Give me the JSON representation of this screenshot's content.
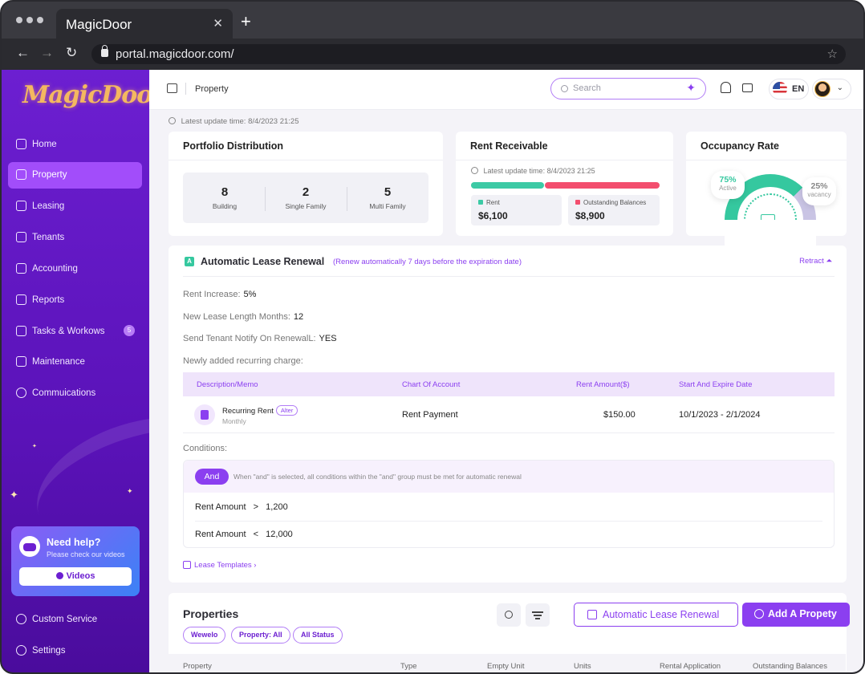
{
  "browser": {
    "tab_title": "MagicDoor",
    "tab_close": "✕",
    "new_tab": "+",
    "url": "portal.magicdoor.com/",
    "back": "←",
    "forward": "→",
    "reload": "↻",
    "star": "☆"
  },
  "sidebar": {
    "logo": "MagicDoor",
    "items": [
      {
        "label": "Home",
        "icon": "home-icon"
      },
      {
        "label": "Property",
        "icon": "building-icon",
        "active": true
      },
      {
        "label": "Leasing",
        "icon": "document-icon"
      },
      {
        "label": "Tenants",
        "icon": "users-icon"
      },
      {
        "label": "Accounting",
        "icon": "wallet-icon"
      },
      {
        "label": "Reports",
        "icon": "chart-icon"
      },
      {
        "label": "Tasks & Workows",
        "icon": "tasks-icon",
        "badge": "5"
      },
      {
        "label": "Maintenance",
        "icon": "wrench-icon"
      },
      {
        "label": "Commuications",
        "icon": "chat-icon"
      }
    ],
    "help": {
      "title": "Need help?",
      "subtitle": "Please check our videos",
      "button": "Videos"
    },
    "bottom_items": [
      {
        "label": "Custom Service",
        "icon": "headset-icon"
      },
      {
        "label": "Settings",
        "icon": "gear-icon"
      }
    ]
  },
  "topbar": {
    "breadcrumb": "Property",
    "search_placeholder": "Search",
    "language": "EN"
  },
  "latest_update": "Latest update time:",
  "latest_update_value": "8/4/2023 21:25",
  "portfolio": {
    "title": "Portfolio Distribution",
    "stats": [
      {
        "value": "8",
        "label": "Building"
      },
      {
        "value": "2",
        "label": "Single Family"
      },
      {
        "value": "5",
        "label": "Multi Family"
      }
    ]
  },
  "rent_receivable": {
    "title": "Rent Receivable",
    "update_label": "Latest update time:",
    "update_value": "8/4/2023 21:25",
    "rent_label": "Rent",
    "rent_value": "$6,100",
    "outstanding_label": "Outstanding Balances",
    "outstanding_value": "$8,900",
    "colors": {
      "rent": "#3ccaa5",
      "outstanding": "#f34e6e"
    }
  },
  "occupancy": {
    "title": "Occupancy Rate",
    "active_value": "75%",
    "active_label": "Active",
    "vacancy_value": "25%",
    "vacancy_label": "vacancy",
    "active_fraction": 0.75
  },
  "lease_renewal": {
    "title": "Automatic Lease Renewal",
    "note": "(Renew automatically 7 days before the expiration date)",
    "retract": "Retract ⏶",
    "rent_increase_label": "Rent Increase:",
    "rent_increase_value": "5%",
    "length_label": "New Lease Length Months:",
    "length_value": "12",
    "notify_label": "Send Tenant Notify On RenewalL:",
    "notify_value": "YES",
    "recurring_label": "Newly added recurring charge:",
    "table": {
      "headers": [
        "Description/Memo",
        "Chart Of Account",
        "Rent Amount($)",
        "Start And Expire Date"
      ],
      "row": {
        "name": "Recurring Rent",
        "tag": "Alter",
        "frequency": "Monthly",
        "account": "Rent Payment",
        "amount": "$150.00",
        "dates": "10/1/2023 - 2/1/2024"
      }
    },
    "conditions_label": "Conditions:",
    "and_label": "And",
    "and_note": "When \"and\" is selected, all conditions within the \"and\" group must be met for automatic renewal",
    "conditions": [
      {
        "field": "Rent Amount",
        "op": ">",
        "value": "1,200"
      },
      {
        "field": "Rent Amount",
        "op": "<",
        "value": "12,000"
      }
    ],
    "templates_link": "Lease Templates ›"
  },
  "properties": {
    "title": "Properties",
    "chips": [
      "Wewelo",
      "Property: All",
      "All Status"
    ],
    "renewal_button": "Automatic Lease Renewal",
    "add_button": "Add A Propety",
    "columns": [
      "Property",
      "Type",
      "Empty Unit",
      "Units",
      "Rental Application",
      "Outstanding Balances"
    ]
  }
}
